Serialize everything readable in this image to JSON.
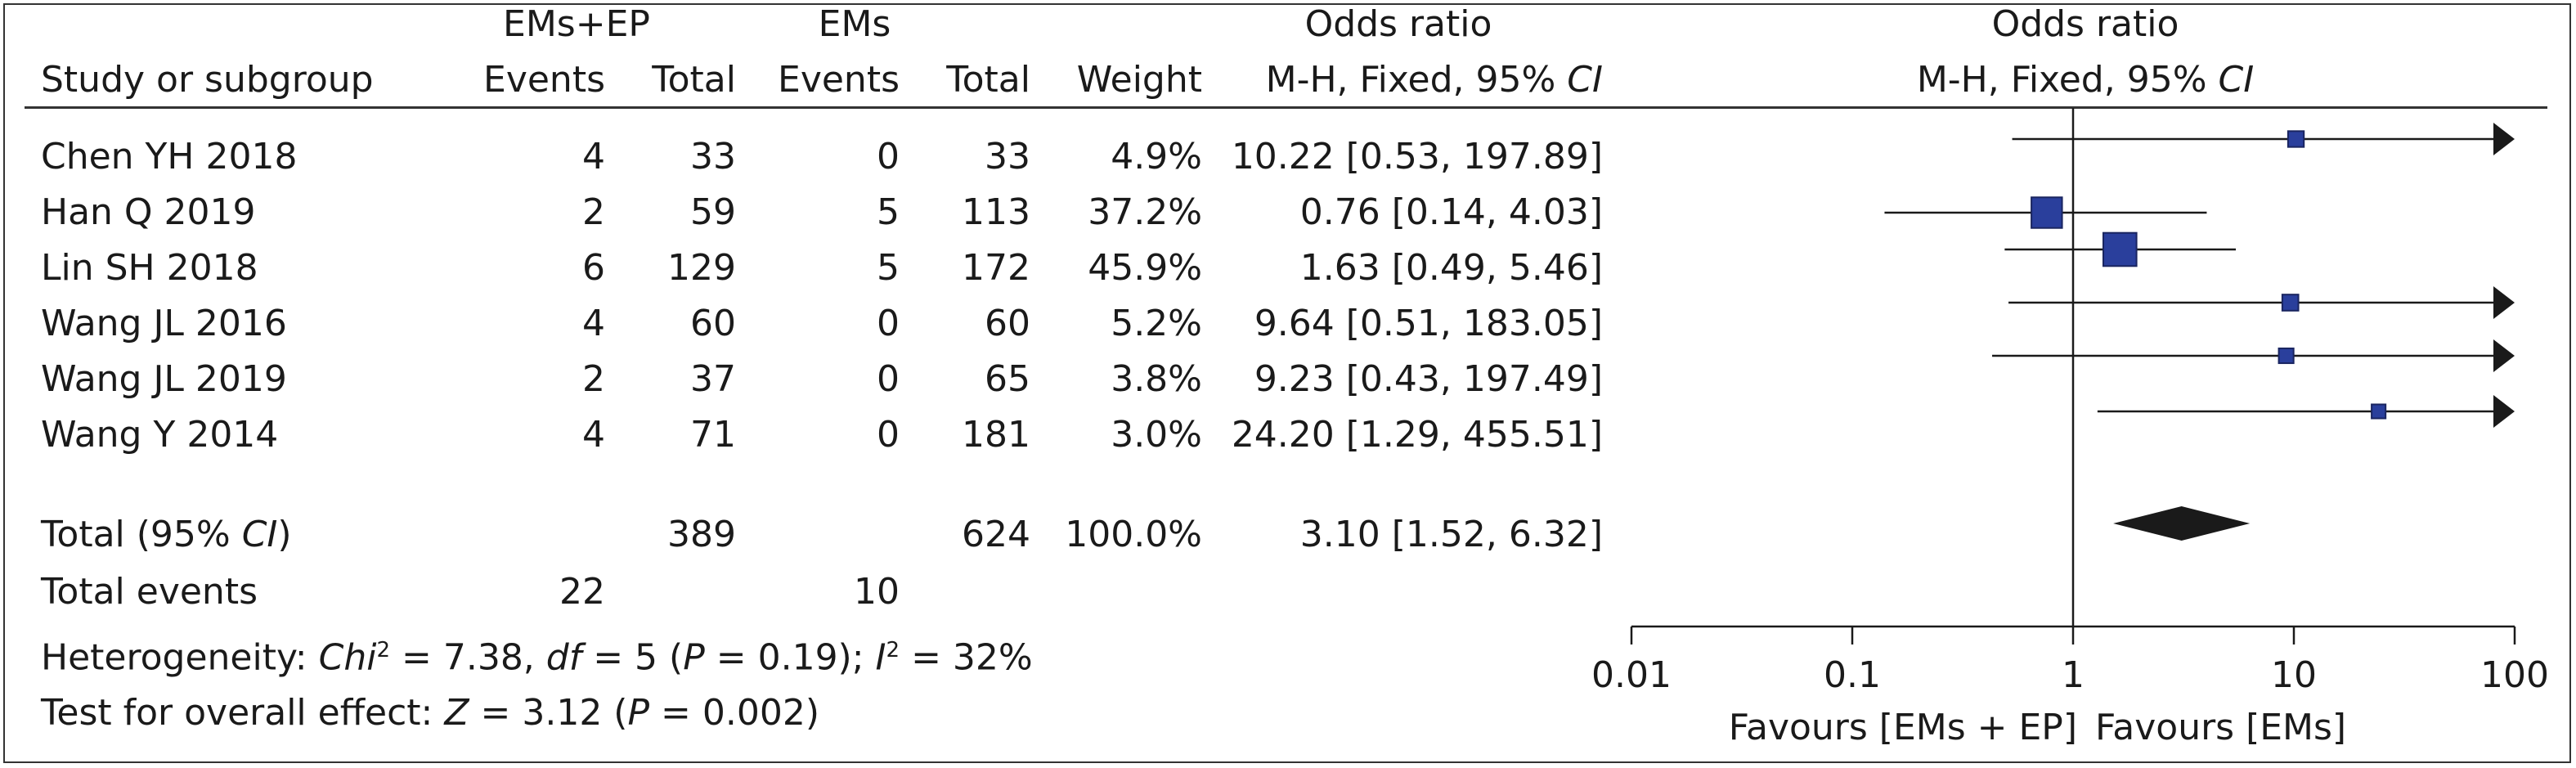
{
  "header": {
    "group1_label": "EMs+EP",
    "group2_label": "EMs",
    "or_label": "Odds ratio",
    "plot_title": "Odds ratio",
    "study_col": "Study or subgroup",
    "events1": "Events",
    "total1": "Total",
    "events2": "Events",
    "total2": "Total",
    "weight": "Weight",
    "method": "M-H, Fixed, 95% ",
    "ci": "CI",
    "plot_method": "M-H, Fixed, 95% ",
    "plot_ci": "CI"
  },
  "rows": [
    {
      "study": "Chen YH 2018",
      "e1": "4",
      "t1": "33",
      "e2": "0",
      "t2": "33",
      "weight": "4.9%",
      "or_text": "10.22 [0.53, 197.89]"
    },
    {
      "study": "Han Q 2019",
      "e1": "2",
      "t1": "59",
      "e2": "5",
      "t2": "113",
      "weight": "37.2%",
      "or_text": "0.76 [0.14, 4.03]"
    },
    {
      "study": "Lin SH 2018",
      "e1": "6",
      "t1": "129",
      "e2": "5",
      "t2": "172",
      "weight": "45.9%",
      "or_text": "1.63 [0.49, 5.46]"
    },
    {
      "study": "Wang JL 2016",
      "e1": "4",
      "t1": "60",
      "e2": "0",
      "t2": "60",
      "weight": "5.2%",
      "or_text": "9.64 [0.51, 183.05]"
    },
    {
      "study": "Wang JL 2019",
      "e1": "2",
      "t1": "37",
      "e2": "0",
      "t2": "65",
      "weight": "3.8%",
      "or_text": "9.23 [0.43, 197.49]"
    },
    {
      "study": "Wang Y 2014",
      "e1": "4",
      "t1": "71",
      "e2": "0",
      "t2": "181",
      "weight": "3.0%",
      "or_text": "24.20 [1.29, 455.51]"
    }
  ],
  "total": {
    "label_pre": "Total (95% ",
    "label_ci": "CI",
    "label_post": ")",
    "t1": "389",
    "t2": "624",
    "weight": "100.0%",
    "or_text": "3.10 [1.52, 6.32]"
  },
  "total_events": {
    "label": "Total events",
    "e1": "22",
    "e2": "10"
  },
  "heterogeneity": {
    "prefix": "Heterogeneity: ",
    "chi_sym": "Chi",
    "chi_sup": "2",
    "chi_val": " = 7.38, ",
    "df_sym": "df",
    "df_val": " = 5  (",
    "p_sym": "P",
    "p_val": " = 0.19); ",
    "i_sym": "I",
    "i_sup": "2",
    "i_val": " = 32%"
  },
  "overall": {
    "prefix": "Test for overall effect: ",
    "z_sym": "Z",
    "z_val": " = 3.12 (",
    "p_sym": "P",
    "p_val": " = 0.002)"
  },
  "axis": {
    "ticks": [
      "0.01",
      "0.1",
      "1",
      "10",
      "100"
    ],
    "favours_left": "Favours [EMs + EP]",
    "favours_right": "Favours [EMs]"
  },
  "colors": {
    "marker": "#2a3f9c",
    "marker_edge": "#1a2560",
    "diamond": "#1a1a1a",
    "line": "#1a1a1a"
  },
  "chart_data": {
    "type": "forest",
    "scale": "log",
    "xlim": [
      0.01,
      100
    ],
    "ticks": [
      0.01,
      0.1,
      1,
      10,
      100
    ],
    "null_line": 1,
    "studies": [
      {
        "name": "Chen YH 2018",
        "or": 10.22,
        "lo": 0.53,
        "hi": 197.89,
        "weight": 4.9
      },
      {
        "name": "Han Q 2019",
        "or": 0.76,
        "lo": 0.14,
        "hi": 4.03,
        "weight": 37.2
      },
      {
        "name": "Lin SH 2018",
        "or": 1.63,
        "lo": 0.49,
        "hi": 5.46,
        "weight": 45.9
      },
      {
        "name": "Wang JL 2016",
        "or": 9.64,
        "lo": 0.51,
        "hi": 183.05,
        "weight": 5.2
      },
      {
        "name": "Wang JL 2019",
        "or": 9.23,
        "lo": 0.43,
        "hi": 197.49,
        "weight": 3.8
      },
      {
        "name": "Wang Y 2014",
        "or": 24.2,
        "lo": 1.29,
        "hi": 455.51,
        "weight": 3.0
      }
    ],
    "pooled": {
      "or": 3.1,
      "lo": 1.52,
      "hi": 6.32
    }
  }
}
